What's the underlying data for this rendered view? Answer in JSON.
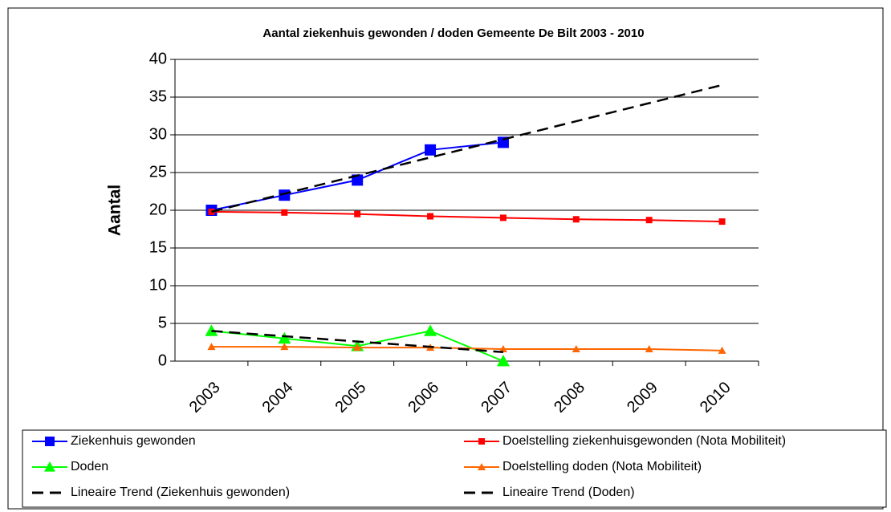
{
  "chart_data": {
    "type": "line",
    "title": "Aantal ziekenhuis gewonden / doden Gemeente De Bilt 2003 - 2010",
    "y_label": "Aantal",
    "categories": [
      "2003",
      "2004",
      "2005",
      "2006",
      "2007",
      "2008",
      "2009",
      "2010"
    ],
    "ylim": [
      0,
      40
    ],
    "yticks": [
      0,
      5,
      10,
      15,
      20,
      25,
      30,
      35,
      40
    ],
    "grid": true,
    "legend": "bottom",
    "series": [
      {
        "name": "Ziekenhuis gewonden",
        "color": "#0000ff",
        "marker": "square",
        "values": [
          20,
          22,
          24,
          28,
          29,
          null,
          null,
          null
        ]
      },
      {
        "name": "Doelstelling ziekenhuisgewonden (Nota Mobiliteit)",
        "color": "#ff0000",
        "marker": "square",
        "values": [
          19.8,
          19.7,
          19.5,
          19.2,
          19.0,
          18.8,
          18.7,
          18.5
        ]
      },
      {
        "name": "Doden",
        "color": "#00ff00",
        "marker": "triangle",
        "values": [
          4,
          3,
          2,
          4,
          0,
          null,
          null,
          null
        ]
      },
      {
        "name": "Doelstelling doden (Nota Mobiliteit)",
        "color": "#ff6600",
        "marker": "triangle",
        "values": [
          1.9,
          1.9,
          1.8,
          1.8,
          1.6,
          1.6,
          1.6,
          1.4
        ]
      },
      {
        "name": "Lineaire Trend (Ziekenhuis gewonden)",
        "color": "#000000",
        "dashed": true,
        "values": [
          19.8,
          22.2,
          24.6,
          27.0,
          29.4,
          31.8,
          34.2,
          36.6
        ]
      },
      {
        "name": "Lineaire Trend (Doden)",
        "color": "#000000",
        "dashed": true,
        "values": [
          4.0,
          3.3,
          2.6,
          1.9,
          1.2,
          null,
          null,
          null
        ]
      }
    ]
  }
}
